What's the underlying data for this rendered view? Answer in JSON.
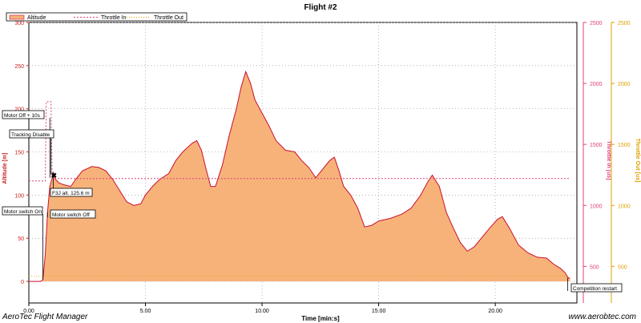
{
  "chart_data": {
    "type": "area",
    "title": "Flight #2",
    "legend": {
      "placement": "top-left",
      "entries": [
        "Altitude",
        "Throttle In",
        "Throttle Out"
      ]
    },
    "xlabel": "Time [min:s]",
    "x_ticks": [
      "0.00",
      "5.00",
      "10.00",
      "15.00",
      "20.00"
    ],
    "xlim_min": [
      0,
      23.5
    ],
    "grid": true,
    "axes": {
      "altitude": {
        "label": "Altitude [m]",
        "ticks": [
          "0",
          "50",
          "100",
          "150",
          "200",
          "250",
          "300"
        ],
        "ylim": [
          -25,
          300
        ],
        "color": "#cc2020"
      },
      "throttle_in": {
        "label": "Throttle In [us]",
        "ticks": [
          "500",
          "1000",
          "1500",
          "2000",
          "2500"
        ],
        "ylim": [
          200,
          2500
        ],
        "color": "#e0407a"
      },
      "throttle_out": {
        "label": "Throttle Out [us]",
        "ticks": [
          "500",
          "1000",
          "1500",
          "2000",
          "2500"
        ],
        "ylim": [
          200,
          2500
        ],
        "color": "#e0a000"
      }
    },
    "series": [
      {
        "name": "Altitude",
        "axis": "altitude",
        "color": "#f7b27a",
        "stroke": "#c8102e",
        "points": [
          [
            0,
            0
          ],
          [
            0.5,
            0
          ],
          [
            0.6,
            2
          ],
          [
            0.7,
            30
          ],
          [
            0.8,
            80
          ],
          [
            0.9,
            110
          ],
          [
            1.0,
            120
          ],
          [
            1.05,
            126
          ],
          [
            1.15,
            118
          ],
          [
            1.3,
            114
          ],
          [
            1.5,
            112
          ],
          [
            1.8,
            110
          ],
          [
            2.0,
            118
          ],
          [
            2.3,
            128
          ],
          [
            2.7,
            133
          ],
          [
            3.0,
            132
          ],
          [
            3.3,
            128
          ],
          [
            3.6,
            118
          ],
          [
            3.9,
            105
          ],
          [
            4.2,
            92
          ],
          [
            4.5,
            88
          ],
          [
            4.8,
            90
          ],
          [
            5.0,
            100
          ],
          [
            5.3,
            110
          ],
          [
            5.6,
            118
          ],
          [
            6.0,
            125
          ],
          [
            6.3,
            140
          ],
          [
            6.6,
            150
          ],
          [
            7.0,
            160
          ],
          [
            7.2,
            163
          ],
          [
            7.4,
            152
          ],
          [
            7.6,
            130
          ],
          [
            7.8,
            110
          ],
          [
            8.0,
            110
          ],
          [
            8.3,
            135
          ],
          [
            8.6,
            170
          ],
          [
            8.9,
            200
          ],
          [
            9.1,
            225
          ],
          [
            9.3,
            243
          ],
          [
            9.5,
            230
          ],
          [
            9.7,
            210
          ],
          [
            10.0,
            195
          ],
          [
            10.3,
            180
          ],
          [
            10.6,
            163
          ],
          [
            11.0,
            152
          ],
          [
            11.4,
            150
          ],
          [
            11.7,
            140
          ],
          [
            12.0,
            132
          ],
          [
            12.3,
            120
          ],
          [
            12.6,
            130
          ],
          [
            12.9,
            140
          ],
          [
            13.1,
            144
          ],
          [
            13.3,
            128
          ],
          [
            13.5,
            110
          ],
          [
            13.8,
            100
          ],
          [
            14.1,
            85
          ],
          [
            14.4,
            63
          ],
          [
            14.7,
            65
          ],
          [
            15.0,
            70
          ],
          [
            15.5,
            73
          ],
          [
            16.0,
            78
          ],
          [
            16.4,
            85
          ],
          [
            16.8,
            100
          ],
          [
            17.1,
            115
          ],
          [
            17.3,
            123
          ],
          [
            17.6,
            110
          ],
          [
            17.9,
            80
          ],
          [
            18.2,
            62
          ],
          [
            18.5,
            45
          ],
          [
            18.8,
            35
          ],
          [
            19.1,
            40
          ],
          [
            19.4,
            50
          ],
          [
            19.8,
            63
          ],
          [
            20.1,
            72
          ],
          [
            20.3,
            75
          ],
          [
            20.6,
            62
          ],
          [
            21.0,
            42
          ],
          [
            21.4,
            33
          ],
          [
            21.8,
            28
          ],
          [
            22.2,
            27
          ],
          [
            22.5,
            20
          ],
          [
            22.8,
            15
          ],
          [
            23.0,
            10
          ],
          [
            23.1,
            5
          ],
          [
            23.2,
            3
          ]
        ]
      },
      {
        "name": "Throttle In",
        "axis": "throttle_in",
        "color": "#e0407a",
        "points": [
          [
            0,
            1200
          ],
          [
            0.7,
            1200
          ],
          [
            0.75,
            1850
          ],
          [
            0.95,
            1850
          ],
          [
            1.0,
            1220
          ],
          [
            23.2,
            1220
          ]
        ]
      },
      {
        "name": "Throttle Out",
        "axis": "throttle_out",
        "color": "#e0a000",
        "points": [
          [
            0,
            420
          ],
          [
            23.2,
            420
          ]
        ]
      }
    ],
    "markers": [
      {
        "label": "Motor switch On",
        "x": 0.6
      },
      {
        "label": "Motor Off + 10s",
        "x": 0.9
      },
      {
        "label": "Tracking Disable",
        "x": 0.95
      },
      {
        "label": "F3J alt. 125.6 m",
        "x": 1.05
      },
      {
        "label": "Motor switch Off",
        "x": 0.8
      },
      {
        "label": "Competition restart",
        "x": 23.1
      }
    ]
  },
  "footer": {
    "left": "AeroTec Flight Manager",
    "right": "www.aerobtec.com"
  }
}
